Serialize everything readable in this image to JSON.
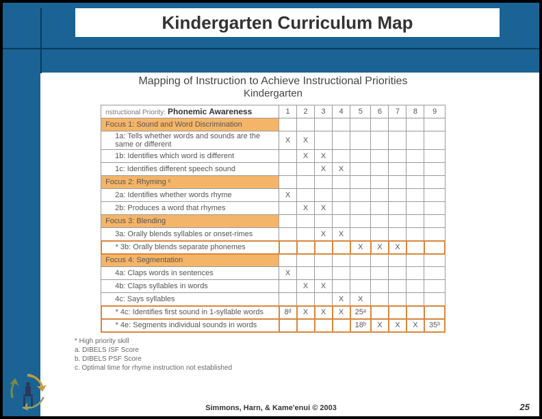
{
  "slide": {
    "title": "Kindergarten Curriculum Map",
    "footer": "Simmons, Harn, & Kame'enui © 2003",
    "page_number": "25"
  },
  "map": {
    "heading1": "Mapping of Instruction to Achieve Instructional Priorities",
    "heading2": "Kindergarten",
    "priority_label": "nstructional Priority:",
    "priority_value": "Phonemic Awareness",
    "columns": [
      "1",
      "2",
      "3",
      "4",
      "5",
      "6",
      "7",
      "8",
      "9"
    ],
    "rows": [
      {
        "type": "focus",
        "label": "Focus 1: Sound and Word Discrimination",
        "cells": [
          "",
          "",
          "",
          "",
          "",
          "",
          "",
          "",
          ""
        ]
      },
      {
        "type": "item",
        "label": "1a: Tells whether words and sounds are the same or different",
        "cells": [
          "X",
          "X",
          "",
          "",
          "",
          "",
          "",
          "",
          ""
        ]
      },
      {
        "type": "item",
        "label": "1b: Identifies which word is different",
        "cells": [
          "",
          "X",
          "X",
          "",
          "",
          "",
          "",
          "",
          ""
        ]
      },
      {
        "type": "item",
        "label": "1c: Identifies different speech sound",
        "cells": [
          "",
          "",
          "X",
          "X",
          "",
          "",
          "",
          "",
          ""
        ]
      },
      {
        "type": "focus",
        "label": "Focus 2: Rhyming ᶜ",
        "cells": [
          "",
          "",
          "",
          "",
          "",
          "",
          "",
          "",
          ""
        ]
      },
      {
        "type": "item",
        "label": "2a: Identifies whether words rhyme",
        "cells": [
          "X",
          "",
          "",
          "",
          "",
          "",
          "",
          "",
          ""
        ]
      },
      {
        "type": "item",
        "label": "2b: Produces a word that rhymes",
        "cells": [
          "",
          "X",
          "X",
          "",
          "",
          "",
          "",
          "",
          ""
        ]
      },
      {
        "type": "focus",
        "label": "Focus 3: Blending",
        "cells": [
          "",
          "",
          "",
          "",
          "",
          "",
          "",
          "",
          ""
        ]
      },
      {
        "type": "item",
        "label": "3a: Orally blends syllables or onset-rimes",
        "cells": [
          "",
          "",
          "X",
          "X",
          "",
          "",
          "",
          "",
          ""
        ]
      },
      {
        "type": "hi",
        "label": "* 3b: Orally blends separate phonemes",
        "cells": [
          "",
          "",
          "",
          "",
          "X",
          "X",
          "X",
          "",
          ""
        ]
      },
      {
        "type": "focus",
        "label": "Focus 4: Segmentation",
        "cells": [
          "",
          "",
          "",
          "",
          "",
          "",
          "",
          "",
          ""
        ]
      },
      {
        "type": "item",
        "label": "4a: Claps words in sentences",
        "cells": [
          "X",
          "",
          "",
          "",
          "",
          "",
          "",
          "",
          ""
        ]
      },
      {
        "type": "item",
        "label": "4b: Claps syllables in words",
        "cells": [
          "",
          "X",
          "X",
          "",
          "",
          "",
          "",
          "",
          ""
        ]
      },
      {
        "type": "item",
        "label": "4c: Says syllables",
        "cells": [
          "",
          "",
          "",
          "X",
          "X",
          "",
          "",
          "",
          ""
        ]
      },
      {
        "type": "hi",
        "label": "* 4c: Identifies first sound in 1-syllable words",
        "cells": [
          "8ᵈ",
          "X",
          "X",
          "X",
          "25ᵃ",
          "",
          "",
          "",
          ""
        ]
      },
      {
        "type": "hi",
        "label": "* 4e: Segments individual sounds in words",
        "cells": [
          "",
          "",
          "",
          "",
          "18ᵇ",
          "X",
          "X",
          "X",
          "35ʰ"
        ]
      }
    ],
    "footnotes": [
      "* High priority skill",
      "a. DIBELS ISF Score",
      "b. DIBELS PSF Score",
      "c. Optimal time for rhyme instruction not established"
    ]
  },
  "colors": {
    "band": "#1a6394",
    "focus_bg": "#f5b568",
    "hi_border": "#d9863c"
  }
}
